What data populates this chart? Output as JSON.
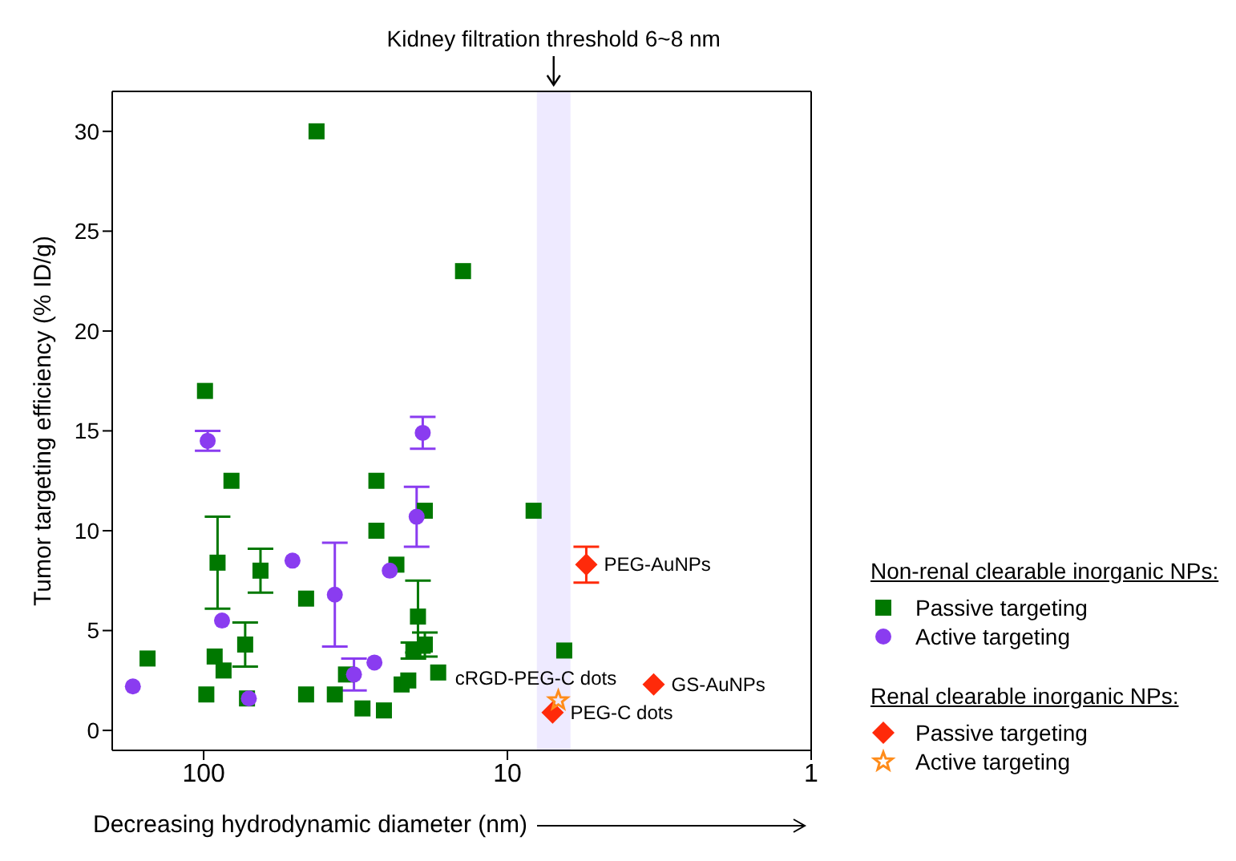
{
  "chart_data": {
    "type": "scatter",
    "xlabel": "Decreasing hydrodynamic diameter (nm)",
    "ylabel": "Tumor targeting efficiency (% ID/g)",
    "log": "x",
    "xlim": [
      200,
      1
    ],
    "xticks": [
      100,
      10,
      1
    ],
    "ylim": [
      -1,
      32
    ],
    "yticks": [
      0,
      5,
      10,
      15,
      20,
      25,
      30
    ],
    "legend": "right",
    "series": [
      {
        "name": "Passive targeting",
        "color": "#007800",
        "marker": "square",
        "x": [
          153,
          99,
          98,
          92,
          90,
          86,
          81,
          73,
          72,
          65,
          42.5,
          46,
          46,
          37,
          34,
          30,
          27,
          27,
          25.5,
          23.2,
          22.3,
          21.2,
          20.4,
          19.7,
          18.7,
          18.7,
          16.9,
          14,
          8.2,
          6.5
        ],
        "values": [
          3.6,
          17,
          1.8,
          3.7,
          8.4,
          3.0,
          12.5,
          4.3,
          1.6,
          8.0,
          30,
          6.6,
          1.8,
          1.8,
          2.8,
          1.1,
          12.5,
          10.0,
          1.0,
          8.3,
          2.3,
          2.5,
          4.0,
          5.7,
          11.0,
          4.3,
          2.9,
          23,
          11.0,
          4.0
        ],
        "errors": [
          null,
          null,
          null,
          null,
          2.3,
          null,
          null,
          1.1,
          null,
          1.1,
          null,
          null,
          null,
          null,
          null,
          null,
          null,
          null,
          null,
          null,
          null,
          null,
          0.4,
          1.8,
          null,
          0.6,
          null,
          null,
          null,
          null
        ]
      },
      {
        "name": "Active targeting",
        "color": "#8a3cf0",
        "marker": "circle",
        "x": [
          171,
          97,
          87,
          71,
          51,
          37,
          32,
          27.4,
          24.4,
          19.9,
          19
        ],
        "values": [
          2.2,
          14.5,
          5.5,
          1.6,
          8.5,
          6.8,
          2.8,
          3.4,
          8.0,
          10.7,
          14.9
        ],
        "errors": [
          null,
          0.5,
          null,
          null,
          null,
          2.6,
          0.8,
          null,
          null,
          1.5,
          0.8
        ]
      },
      {
        "name": "Passive targeting",
        "color": "#ff2a0a",
        "marker": "diamond",
        "x": [
          5.5,
          3.3,
          7.1
        ],
        "values": [
          8.3,
          2.3,
          0.9
        ],
        "errors": [
          0.9,
          null,
          null
        ]
      },
      {
        "name": "Active targeting",
        "color": "#ff8c1a",
        "marker": "star",
        "x": [
          6.8
        ],
        "values": [
          1.5
        ]
      }
    ],
    "bands": [
      {
        "axis": "x",
        "from": 8,
        "to": 6.2,
        "label": "Kidney filtration threshold 6~8 nm",
        "color": "#eeeaff"
      }
    ],
    "annotations": [
      "Non-renal clearable inorganic NPs:",
      "Renal clearable inorganic NPs:",
      {
        "text": "PEG-AuNPs",
        "x": 5.5,
        "y": 8.3
      },
      {
        "text": "GS-AuNPs",
        "x": 3.3,
        "y": 2.3
      },
      {
        "text": "PEG-C dots",
        "x": 7.1,
        "y": 0.9
      },
      {
        "text": "cRGD-PEG-C dots",
        "x": 6.8,
        "y": 1.5
      }
    ]
  }
}
